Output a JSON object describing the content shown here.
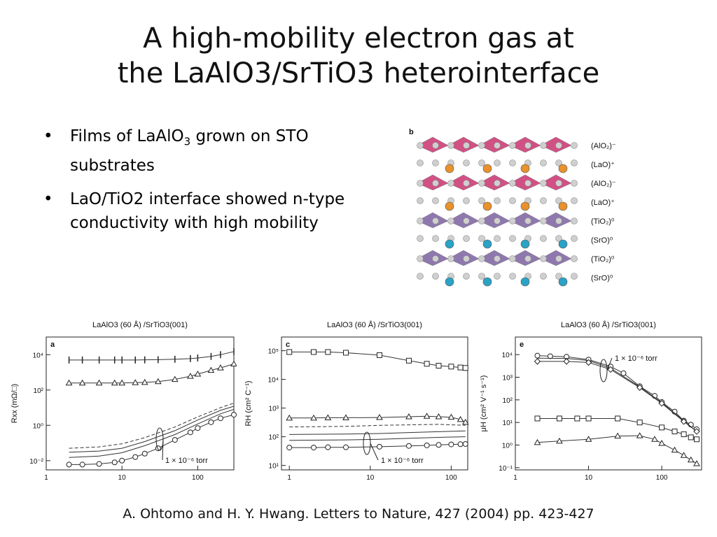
{
  "slide": {
    "title_line1": "A high-mobility electron gas at",
    "title_line2": "the LaAlO3/SrTiO3 heterointerface",
    "bullet_marker": "•",
    "bullets": [
      {
        "pre": "Films of LaAlO",
        "sub": "3",
        "post": " grown on STO substrates"
      },
      {
        "text": "LaO/TiO2 interface showed n-type conductivity with high mobility"
      }
    ],
    "citation": "A. Ohtomo and H. Y. Hwang. Letters to Nature,  427 (2004) pp. 423-427"
  },
  "crystal": {
    "panel_letter": "b",
    "layers": [
      {
        "label": "(AlO₂)⁻",
        "color": "#c2185b"
      },
      {
        "label": "(LaO)⁺",
        "color": "#e8912d"
      },
      {
        "label": "(AlO₂)⁻",
        "color": "#c2185b"
      },
      {
        "label": "(LaO)⁺",
        "color": "#e8912d"
      },
      {
        "label": "(TiO₂)⁰",
        "color": "#6a4c93"
      },
      {
        "label": "(SrO)⁰",
        "color": "#2aa3c6"
      },
      {
        "label": "(TiO₂)⁰",
        "color": "#6a4c93"
      },
      {
        "label": "(SrO)⁰",
        "color": "#2aa3c6"
      }
    ]
  },
  "chart_data": [
    {
      "type": "scatter",
      "panel_letter": "a",
      "title": "LaAlO3 (60 Å) /SrTiO3(001)",
      "ylabel": "Rxx (mΩ/□)",
      "x_scale": "log",
      "y_scale": "log",
      "xlim": [
        1,
        300
      ],
      "ylim": [
        0.003,
        100000
      ],
      "x_ticks": [
        "1",
        "10",
        "100"
      ],
      "y_ticks": [
        "10⁻²",
        "10⁰",
        "10²",
        "10⁴"
      ],
      "annotation": "1 × 10⁻⁶ torr",
      "series": [
        {
          "marker": "vline",
          "x": [
            2,
            3,
            5,
            8,
            10,
            15,
            20,
            30,
            50,
            80,
            100,
            150,
            200,
            300
          ],
          "y": [
            5000,
            5000,
            5000,
            5000,
            5000,
            5000,
            5100,
            5200,
            5500,
            6000,
            6500,
            8000,
            10000,
            15000
          ]
        },
        {
          "marker": "triangle",
          "x": [
            2,
            3,
            5,
            8,
            10,
            15,
            20,
            30,
            50,
            80,
            100,
            150,
            200,
            300
          ],
          "y": [
            250,
            250,
            250,
            250,
            250,
            260,
            270,
            300,
            400,
            600,
            800,
            1300,
            1800,
            3000
          ]
        },
        {
          "marker": "line-dash",
          "x": [
            2,
            5,
            10,
            20,
            50,
            100,
            200,
            300
          ],
          "y": [
            0.05,
            0.06,
            0.09,
            0.2,
            0.8,
            3,
            10,
            18
          ]
        },
        {
          "marker": "line",
          "x": [
            2,
            5,
            10,
            20,
            50,
            100,
            200,
            300
          ],
          "y": [
            0.03,
            0.035,
            0.05,
            0.12,
            0.5,
            2,
            7,
            12
          ]
        },
        {
          "marker": "line",
          "x": [
            2,
            5,
            10,
            20,
            50,
            100,
            200,
            300
          ],
          "y": [
            0.015,
            0.018,
            0.028,
            0.07,
            0.3,
            1.2,
            4.5,
            8
          ]
        },
        {
          "marker": "circle",
          "x": [
            2,
            3,
            5,
            8,
            10,
            15,
            20,
            30,
            50,
            80,
            100,
            150,
            200,
            300
          ],
          "y": [
            0.006,
            0.006,
            0.0065,
            0.008,
            0.01,
            0.016,
            0.025,
            0.05,
            0.15,
            0.4,
            0.7,
            1.5,
            2.5,
            4
          ]
        }
      ]
    },
    {
      "type": "scatter",
      "panel_letter": "c",
      "title": "LaAlO3 (60 Å) /SrTiO3(001)",
      "ylabel": "RH (cm² C⁻¹)",
      "x_scale": "log",
      "y_scale": "log",
      "xlim": [
        0.8,
        160
      ],
      "ylim": [
        7,
        300000
      ],
      "x_ticks": [
        "1",
        "10",
        "100"
      ],
      "y_ticks": [
        "10¹",
        "10²",
        "10³",
        "10⁴",
        "10⁵"
      ],
      "annotation": "1 × 10⁻⁶ torr",
      "series": [
        {
          "marker": "square",
          "x": [
            1,
            2,
            3,
            5,
            13,
            30,
            50,
            70,
            100,
            130,
            150
          ],
          "y": [
            90000,
            90000,
            90000,
            85000,
            70000,
            45000,
            35000,
            30000,
            28000,
            26000,
            25000
          ]
        },
        {
          "marker": "triangle",
          "x": [
            1,
            2,
            3,
            5,
            13,
            30,
            50,
            70,
            100,
            130,
            150
          ],
          "y": [
            450,
            450,
            460,
            460,
            470,
            500,
            520,
            500,
            480,
            400,
            320
          ]
        },
        {
          "marker": "line-dash",
          "x": [
            1,
            5,
            13,
            30,
            70,
            150
          ],
          "y": [
            220,
            230,
            250,
            260,
            270,
            250
          ]
        },
        {
          "marker": "line",
          "x": [
            1,
            5,
            13,
            30,
            70,
            150
          ],
          "y": [
            120,
            125,
            130,
            140,
            150,
            160
          ]
        },
        {
          "marker": "line",
          "x": [
            1,
            5,
            13,
            30,
            70,
            150
          ],
          "y": [
            75,
            78,
            82,
            88,
            95,
            100
          ]
        },
        {
          "marker": "circle",
          "x": [
            1,
            2,
            3,
            5,
            13,
            30,
            50,
            70,
            100,
            130,
            150
          ],
          "y": [
            42,
            42,
            43,
            43,
            45,
            48,
            50,
            52,
            54,
            55,
            56
          ]
        }
      ]
    },
    {
      "type": "scatter",
      "panel_letter": "e",
      "title": "LaAlO3 (60 Å) /SrTiO3(001)",
      "ylabel": "μH (cm² V⁻¹ s⁻¹)",
      "x_scale": "log",
      "y_scale": "log",
      "xlim": [
        1,
        350
      ],
      "ylim": [
        0.08,
        60000
      ],
      "x_ticks": [
        "1",
        "10",
        "100"
      ],
      "y_ticks": [
        "10⁻¹",
        "10⁰",
        "10¹",
        "10²",
        "10³",
        "10⁴"
      ],
      "annotation": "1 × 10⁻⁶ torr",
      "series": [
        {
          "marker": "circle",
          "x": [
            2,
            3,
            5,
            10,
            20,
            30,
            50,
            80,
            100,
            150,
            200,
            250,
            300
          ],
          "y": [
            9000,
            8500,
            8000,
            6000,
            3000,
            1500,
            400,
            150,
            80,
            30,
            12,
            8,
            5
          ]
        },
        {
          "marker": "line",
          "x": [
            2,
            5,
            10,
            20,
            50,
            100,
            200,
            300
          ],
          "y": [
            7000,
            6800,
            5500,
            2500,
            380,
            75,
            12,
            4
          ]
        },
        {
          "marker": "diamond",
          "x": [
            2,
            5,
            10,
            20,
            50,
            100,
            200,
            300
          ],
          "y": [
            5000,
            5000,
            4500,
            2200,
            350,
            70,
            11,
            4
          ]
        },
        {
          "marker": "square",
          "x": [
            2,
            4,
            7,
            10,
            25,
            50,
            100,
            150,
            200,
            250,
            300
          ],
          "y": [
            15,
            15,
            15,
            15,
            15,
            10,
            6,
            4,
            3,
            2.2,
            1.8
          ]
        },
        {
          "marker": "triangle",
          "x": [
            2,
            4,
            10,
            25,
            50,
            80,
            100,
            150,
            200,
            250,
            300
          ],
          "y": [
            1.3,
            1.5,
            1.8,
            2.5,
            2.6,
            1.8,
            1.2,
            0.6,
            0.35,
            0.22,
            0.15
          ]
        }
      ]
    }
  ]
}
